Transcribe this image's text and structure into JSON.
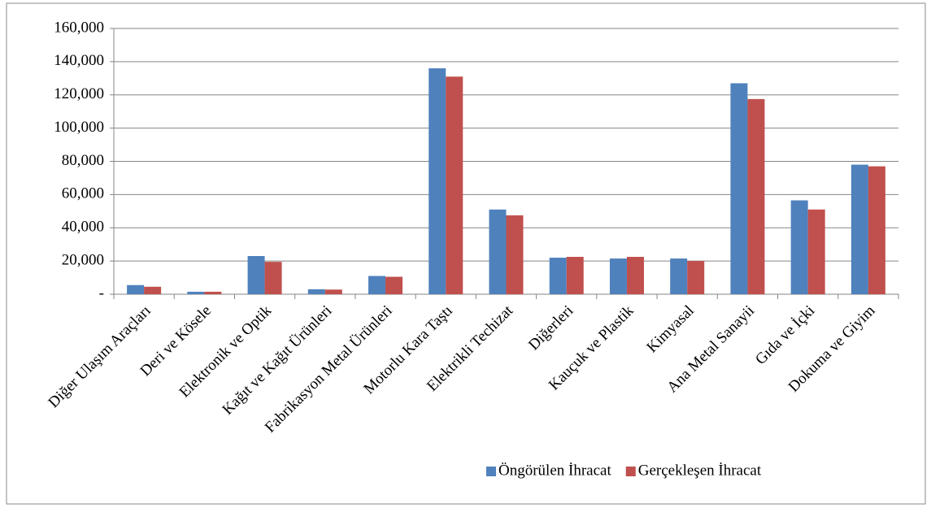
{
  "chart_data": {
    "type": "bar",
    "categories": [
      "Diğer Ulaşım Araçları",
      "Deri ve Kösele",
      "Elektronik ve Optik",
      "Kağıt ve Kağıt Ürünleri",
      "Fabrikasyon Metal Ürünleri",
      "Motorlu Kara Taştı",
      "Elektrikli Techizat",
      "Diğerleri",
      "Kauçuk ve Plastik",
      "Kimyasal",
      "Ana Metal Sanayii",
      "Gıda ve İçki",
      "Dokuma ve Giyim"
    ],
    "series": [
      {
        "name": "Öngörülen İhracat",
        "color": "#4f81bd",
        "values": [
          5500,
          1500,
          23000,
          3000,
          11000,
          136000,
          51000,
          22000,
          21500,
          21500,
          127000,
          56500,
          78000
        ]
      },
      {
        "name": "Gerçekleşen İhracat",
        "color": "#c0504d",
        "values": [
          4500,
          1500,
          19500,
          2800,
          10500,
          131000,
          47500,
          22500,
          22500,
          20000,
          117500,
          51000,
          77000
        ]
      }
    ],
    "ylim": [
      0,
      160000
    ],
    "yticks": [
      {
        "value": 0,
        "label": "-"
      },
      {
        "value": 20000,
        "label": "20,000"
      },
      {
        "value": 40000,
        "label": "40,000"
      },
      {
        "value": 60000,
        "label": "60,000"
      },
      {
        "value": 80000,
        "label": "80,000"
      },
      {
        "value": 100000,
        "label": "100,000"
      },
      {
        "value": 120000,
        "label": "120,000"
      },
      {
        "value": 140000,
        "label": "140,000"
      },
      {
        "value": 160000,
        "label": "160,000"
      }
    ],
    "grid": true,
    "legend": "bottom-right"
  }
}
